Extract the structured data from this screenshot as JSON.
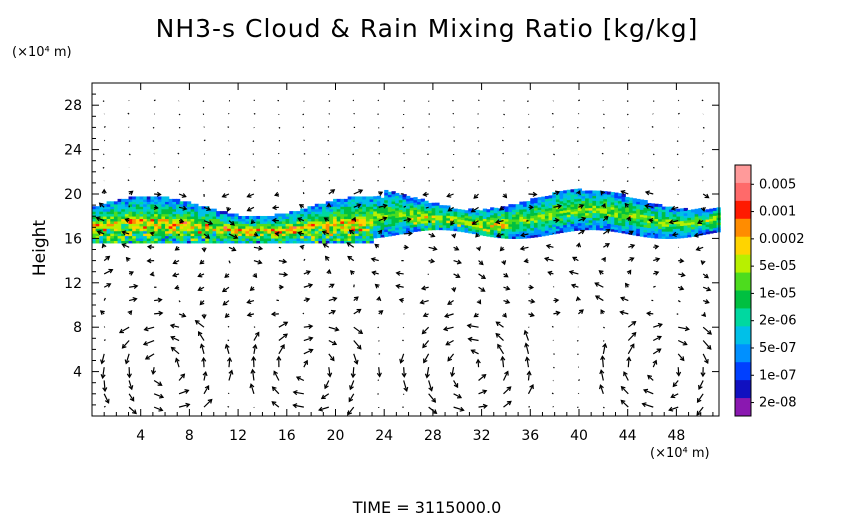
{
  "title": "NH3-s Cloud & Rain Mixing Ratio [kg/kg]",
  "y_unit_label": "(×10⁴ m)",
  "x_unit_label": "(×10⁴ m)",
  "time_label": "TIME = 3115000.0",
  "chart_data": {
    "type": "heatmap",
    "title": "NH3-s Cloud & Rain Mixing Ratio [kg/kg]",
    "xlabel": "",
    "ylabel": "Height",
    "xlim": [
      0,
      51.5
    ],
    "ylim": [
      0,
      30
    ],
    "x_ticks": [
      4,
      8,
      12,
      16,
      20,
      24,
      28,
      32,
      36,
      40,
      44,
      48
    ],
    "y_ticks": [
      4,
      8,
      12,
      16,
      20,
      24,
      28
    ],
    "cloud_layer": {
      "x_range": [
        0,
        51.5
      ],
      "z_range": [
        15.5,
        20
      ]
    },
    "colorbar": {
      "labels": [
        "0.005",
        "0.001",
        "0.0002",
        "5e-05",
        "1e-05",
        "2e-06",
        "5e-07",
        "1e-07",
        "2e-08"
      ],
      "colors": [
        "#ff9a9a",
        "#ff6a6a",
        "#ff1a00",
        "#ff8c00",
        "#ffd400",
        "#b8f000",
        "#4ddc1e",
        "#00c040",
        "#00d8a0",
        "#00c0e8",
        "#0090ff",
        "#0040ff",
        "#1010c0",
        "#8a18b0"
      ]
    }
  }
}
